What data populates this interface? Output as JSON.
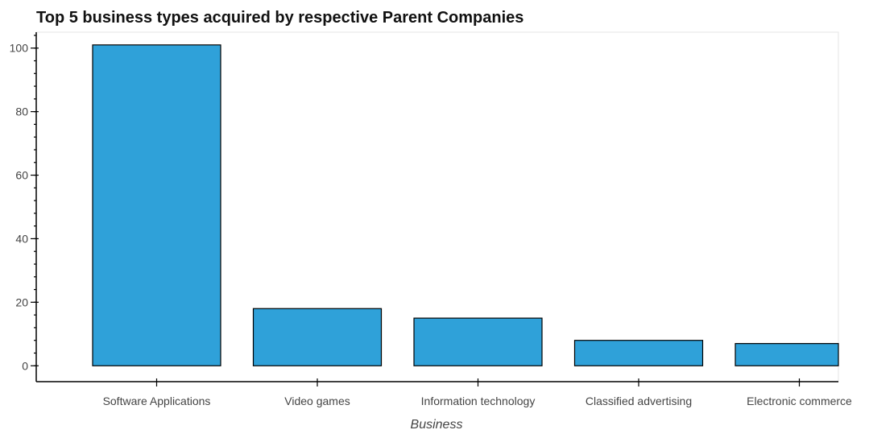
{
  "chart_data": {
    "type": "bar",
    "title": "Top 5 business types acquired by respective Parent Companies",
    "xlabel": "Business",
    "ylabel": "",
    "categories": [
      "Software Applications",
      "Video games",
      "Information technology",
      "Classified advertising",
      "Electronic commerce"
    ],
    "values": [
      101,
      18,
      15,
      8,
      7
    ],
    "ylim": [
      -5,
      105
    ],
    "yticks": [
      0,
      20,
      40,
      60,
      80,
      100
    ],
    "ytick_labels": [
      "0",
      "20",
      "40",
      "60",
      "80",
      "100"
    ],
    "grid": false,
    "legend": "none",
    "bar_color": "#2fa1d9",
    "edge_color": "#000000"
  }
}
